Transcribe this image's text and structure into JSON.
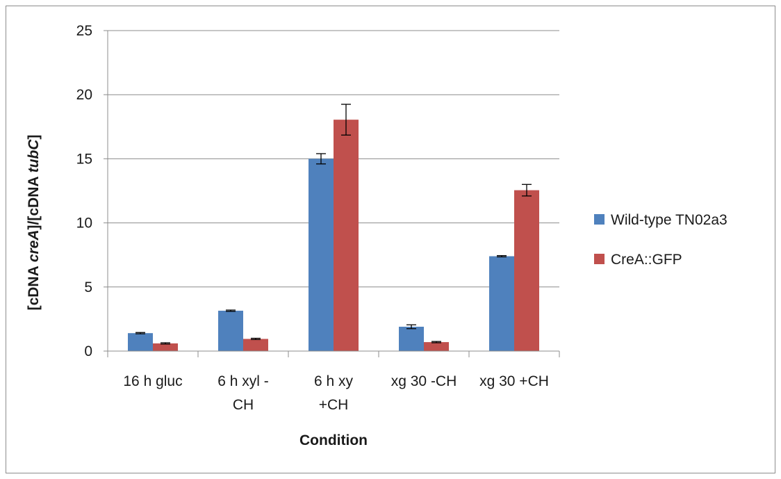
{
  "chart_data": {
    "type": "bar",
    "categories": [
      [
        "16 h gluc"
      ],
      [
        "6 h xyl -",
        "CH"
      ],
      [
        "6 h xy",
        "+CH"
      ],
      [
        "xg 30 -CH"
      ],
      [
        "xg 30 +CH"
      ]
    ],
    "series": [
      {
        "name": "Wild-type TN02a3",
        "color": "#4f81bd",
        "values": [
          1.4,
          3.15,
          15.0,
          1.9,
          7.4
        ],
        "errors": [
          0.05,
          0.05,
          0.4,
          0.15,
          0.05
        ]
      },
      {
        "name": "CreA::GFP",
        "color": "#c0504d",
        "values": [
          0.6,
          0.95,
          18.05,
          0.7,
          12.55
        ],
        "errors": [
          0.05,
          0.05,
          1.2,
          0.05,
          0.45
        ]
      }
    ],
    "xlabel": "Condition",
    "ylabel_parts": [
      {
        "text": "[cDNA ",
        "italic": false
      },
      {
        "text": "creA",
        "italic": true
      },
      {
        "text": "]/[cDNA ",
        "italic": false
      },
      {
        "text": "tubC",
        "italic": true
      },
      {
        "text": "]",
        "italic": false
      }
    ],
    "ylim": [
      0,
      25
    ],
    "yticks": [
      0,
      5,
      10,
      15,
      20,
      25
    ],
    "grid": true,
    "legend_position": "right"
  }
}
